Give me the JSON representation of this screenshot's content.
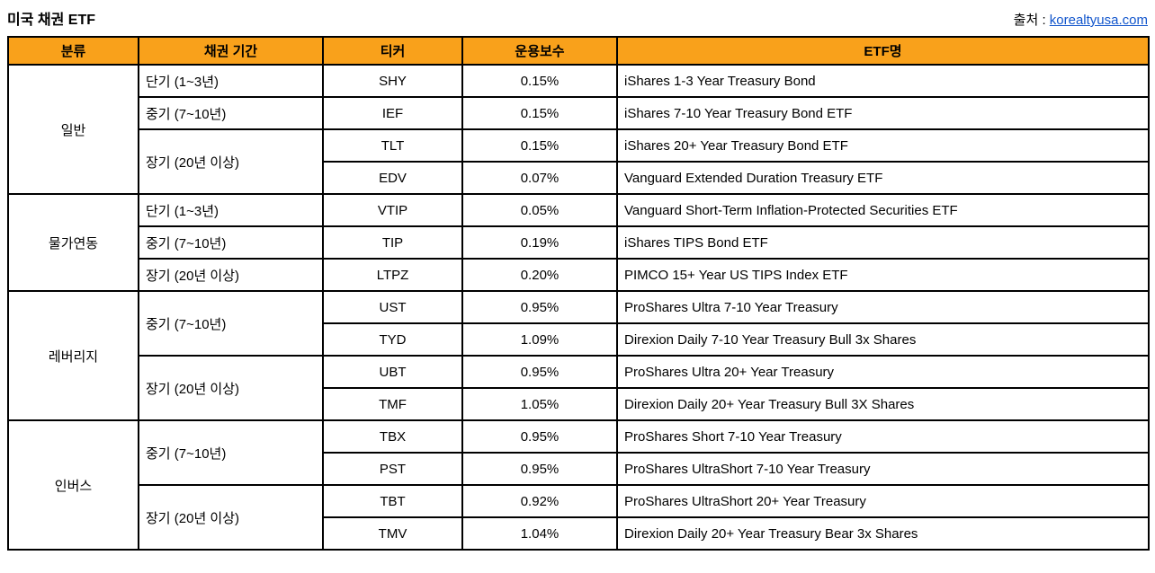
{
  "header": {
    "title": "미국 채권 ETF",
    "source_label": "출처 : ",
    "source_link": "korealtyusa.com"
  },
  "colors": {
    "header_bg": "#F9A11B",
    "border": "#000000",
    "link_blue": "#1155CC"
  },
  "table": {
    "columns": [
      "분류",
      "채권 기간",
      "티커",
      "운용보수",
      "ETF명"
    ],
    "groups": [
      {
        "category": "일반",
        "periods": [
          {
            "label": "단기 (1~3년)",
            "rows": [
              {
                "ticker": "SHY",
                "fee": "0.15%",
                "name": "iShares 1-3 Year Treasury Bond"
              }
            ]
          },
          {
            "label": "중기 (7~10년)",
            "rows": [
              {
                "ticker": "IEF",
                "fee": "0.15%",
                "name": "iShares 7-10 Year Treasury Bond ETF"
              }
            ]
          },
          {
            "label": "장기 (20년 이상)",
            "rows": [
              {
                "ticker": "TLT",
                "fee": "0.15%",
                "name": "iShares 20+ Year Treasury Bond ETF"
              },
              {
                "ticker": "EDV",
                "fee": "0.07%",
                "name": "Vanguard Extended Duration Treasury ETF"
              }
            ]
          }
        ]
      },
      {
        "category": "물가연동",
        "periods": [
          {
            "label": "단기 (1~3년)",
            "rows": [
              {
                "ticker": "VTIP",
                "fee": "0.05%",
                "name": "Vanguard Short-Term Inflation-Protected Securities ETF"
              }
            ]
          },
          {
            "label": "중기 (7~10년)",
            "rows": [
              {
                "ticker": "TIP",
                "fee": "0.19%",
                "name": "iShares TIPS Bond ETF"
              }
            ]
          },
          {
            "label": "장기 (20년 이상)",
            "rows": [
              {
                "ticker": "LTPZ",
                "fee": "0.20%",
                "name": "PIMCO 15+ Year US TIPS Index ETF"
              }
            ]
          }
        ]
      },
      {
        "category": "레버리지",
        "periods": [
          {
            "label": "중기 (7~10년)",
            "rows": [
              {
                "ticker": "UST",
                "fee": "0.95%",
                "name": "ProShares Ultra 7-10 Year Treasury"
              },
              {
                "ticker": "TYD",
                "fee": "1.09%",
                "name": "Direxion Daily 7-10 Year Treasury Bull 3x Shares"
              }
            ]
          },
          {
            "label": "장기 (20년 이상)",
            "rows": [
              {
                "ticker": "UBT",
                "fee": "0.95%",
                "name": "ProShares Ultra 20+ Year Treasury"
              },
              {
                "ticker": "TMF",
                "fee": "1.05%",
                "name": "Direxion Daily 20+ Year Treasury Bull 3X Shares"
              }
            ]
          }
        ]
      },
      {
        "category": "인버스",
        "periods": [
          {
            "label": "중기 (7~10년)",
            "rows": [
              {
                "ticker": "TBX",
                "fee": "0.95%",
                "name": "ProShares Short 7-10 Year Treasury"
              },
              {
                "ticker": "PST",
                "fee": "0.95%",
                "name": "ProShares UltraShort 7-10 Year Treasury"
              }
            ]
          },
          {
            "label": "장기 (20년 이상)",
            "rows": [
              {
                "ticker": "TBT",
                "fee": "0.92%",
                "name": "ProShares UltraShort 20+ Year Treasury"
              },
              {
                "ticker": "TMV",
                "fee": "1.04%",
                "name": "Direxion Daily 20+ Year Treasury Bear 3x Shares"
              }
            ]
          }
        ]
      }
    ]
  }
}
